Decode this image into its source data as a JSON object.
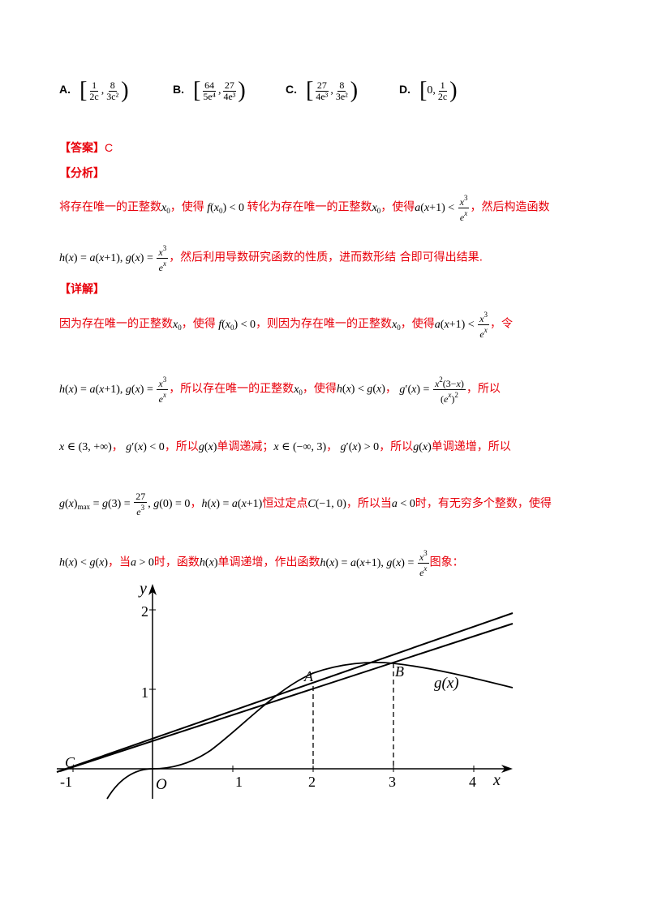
{
  "options": [
    {
      "label": "A.",
      "left": "[",
      "n1": "1",
      "d1": "2c",
      "n2": "8",
      "d2": "3c²",
      "right": ")"
    },
    {
      "label": "B.",
      "left": "[",
      "n1": "64",
      "d1": "5e⁴",
      "n2": "27",
      "d2": "4e³",
      "right": ")"
    },
    {
      "label": "C.",
      "left": "[",
      "n1": "27",
      "d1": "4e³",
      "n2": "8",
      "d2": "3e²",
      "right": ")"
    },
    {
      "label": "D.",
      "left": "[",
      "n1": "0,",
      "d1": "",
      "n2": "1",
      "d2": "2c",
      "right": ")"
    }
  ],
  "answer": {
    "tag": "【答案】",
    "value": "C"
  },
  "analysis": {
    "tag": "【分析】",
    "l1_a": "将存在唯一的正整数",
    "l1_b": "，使得",
    "l1_c": "转化为存在唯一的正整数",
    "l1_d": "，使得",
    "l1_e": "，然后构造函数",
    "l2_a": "，然后利用导数研究函数的性质，进而数形结 合即可得出结果."
  },
  "detail": {
    "tag": "【详解】",
    "l1_a": "因为存在唯一的正整数",
    "l1_b": "，使得",
    "l1_c": "，则因为存在唯一的正整数",
    "l1_d": "，使得",
    "l1_e": "，令",
    "l2_a": "，所以存在唯一的正整数",
    "l2_b": "，使得",
    "l2_c": "，",
    "l2_d": "，所以",
    "l3_a": "，",
    "l3_b": "，所以",
    "l3_c": "单调递减；",
    "l3_d": "，",
    "l3_e": "，所以",
    "l3_f": "单调递增，所以",
    "l4_a": "，",
    "l4_b": "恒过定点",
    "l4_c": "，所以当",
    "l4_d": "时，有无穷多个整数，使得",
    "l5_a": "，当",
    "l5_b": "时，函数",
    "l5_c": "单调递增，作出函数",
    "l5_d": "图象："
  },
  "graph": {
    "y_axis_label": "y",
    "x_axis_label": "x",
    "y_ticks": [
      "2",
      "1"
    ],
    "x_ticks": [
      "-1",
      "1",
      "2",
      "3",
      "4"
    ],
    "origin_label": "O",
    "point_c": "C",
    "point_a": "A",
    "point_b": "B",
    "curve_label": "g(x)"
  },
  "colors": {
    "accent": "#e8000b",
    "text": "#000000"
  }
}
